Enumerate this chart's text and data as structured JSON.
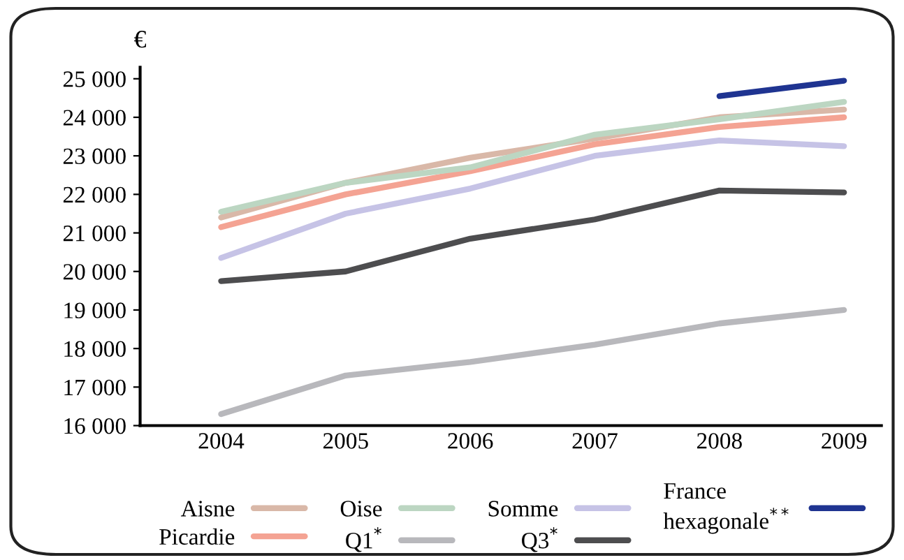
{
  "chart_data": {
    "type": "line",
    "ylabel": "€",
    "categories": [
      "2004",
      "2005",
      "2006",
      "2007",
      "2008",
      "2009"
    ],
    "ylim": [
      16000,
      25300
    ],
    "yticks": [
      {
        "value": 16000,
        "label": "16 000"
      },
      {
        "value": 17000,
        "label": "17 000"
      },
      {
        "value": 18000,
        "label": "18 000"
      },
      {
        "value": 19000,
        "label": "19 000"
      },
      {
        "value": 20000,
        "label": "20 000"
      },
      {
        "value": 21000,
        "label": "21 000"
      },
      {
        "value": 22000,
        "label": "22 000"
      },
      {
        "value": 23000,
        "label": "23 000"
      },
      {
        "value": 24000,
        "label": "24 000"
      },
      {
        "value": 25000,
        "label": "25 000"
      }
    ],
    "grid": false,
    "legend": "bottom",
    "marker": "none",
    "line_style": "solid",
    "series": [
      {
        "name": "Aisne",
        "color": "#d9b8a8",
        "values": [
          21400,
          22300,
          22950,
          23450,
          24000,
          24200
        ]
      },
      {
        "name": "Picardie",
        "color": "#f4a393",
        "values": [
          21150,
          22000,
          22600,
          23300,
          23750,
          24000
        ]
      },
      {
        "name": "Oise",
        "color": "#bcd6c2",
        "values": [
          21550,
          22300,
          22700,
          23550,
          23950,
          24400
        ]
      },
      {
        "name": "Q1$^{*}$",
        "color": "#b8b8bc",
        "values": [
          16300,
          17300,
          17650,
          18100,
          18650,
          19000
        ]
      },
      {
        "name": "Somme",
        "color": "#c6c3e6",
        "values": [
          20350,
          21500,
          22150,
          23000,
          23400,
          23250
        ]
      },
      {
        "name": "Q3$^{*}$",
        "color": "#4d4d4f",
        "values": [
          19750,
          20000,
          20850,
          21350,
          22100,
          22050
        ]
      },
      {
        "name": "France\nhexagonale$^{**}$",
        "color": "#1f3491",
        "values": [
          null,
          null,
          null,
          null,
          24550,
          24950
        ]
      }
    ]
  }
}
